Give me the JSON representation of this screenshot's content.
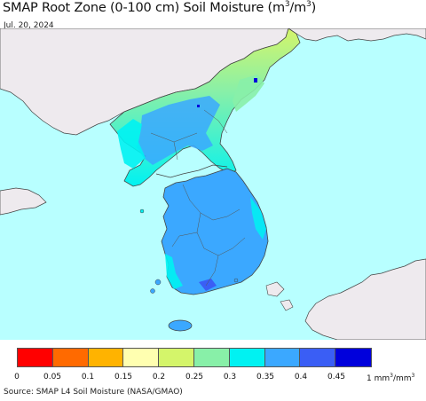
{
  "header": {
    "title_main": "SMAP Root Zone (0-100 cm) Soil Moisture (m",
    "title_sup1": "3",
    "title_mid": "/m",
    "title_sup2": "3",
    "title_end": ")",
    "date": "Jul. 20, 2024"
  },
  "legend": {
    "colors": [
      "#ff0000",
      "#ff6a00",
      "#ffb300",
      "#ffffb0",
      "#d4f56a",
      "#88f0a8",
      "#00f2f2",
      "#3ba8ff",
      "#3a5ef5",
      "#0000dc"
    ],
    "ticks": [
      "0",
      "0.05",
      "0.1",
      "0.15",
      "0.2",
      "0.25",
      "0.3",
      "0.35",
      "0.4",
      "0.45"
    ],
    "unit_value": "1 mm",
    "unit_sup1": "3",
    "unit_mid": "/mm",
    "unit_sup2": "3"
  },
  "map": {
    "sea_color": "#b8ffff",
    "land_outside_color": "#eeeaee",
    "border_color": "#444444"
  },
  "footer": {
    "source": "Source: SMAP L4 Soil Moisture (NASA/GMAO)"
  }
}
